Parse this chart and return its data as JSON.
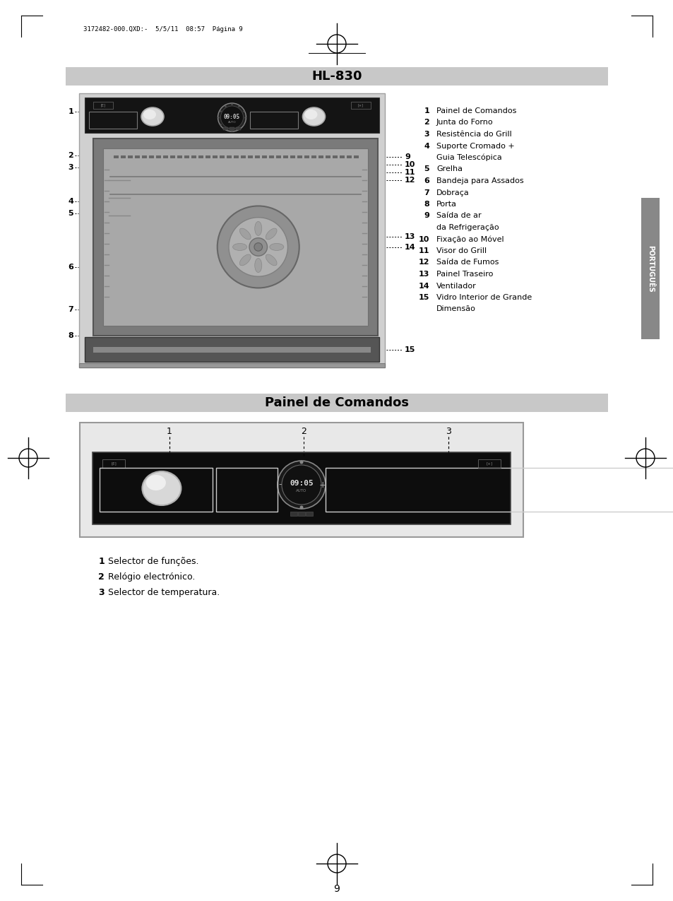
{
  "page_bg": "#ffffff",
  "header_text": "3172482-000.QXD:-  5/5/11  08:57  Página 9",
  "title1": "HL-830",
  "title2": "Painel de Comandos",
  "title_bg": "#c8c8c8",
  "left_labels": [
    "1",
    "2",
    "3",
    "4",
    "5",
    "6",
    "7",
    "8"
  ],
  "legend": [
    [
      "1",
      "Painel de Comandos"
    ],
    [
      "2",
      "Junta do Forno"
    ],
    [
      "3",
      "Resistência do Grill"
    ],
    [
      "4",
      "Suporte Cromado +"
    ],
    [
      "",
      "Guia Telescópica"
    ],
    [
      "5",
      "Grelha"
    ],
    [
      "6",
      "Bandeja para Assados"
    ],
    [
      "7",
      "Dobraça"
    ],
    [
      "8",
      "Porta"
    ],
    [
      "9",
      "Saída de ar"
    ],
    [
      "",
      "da Refrigeração"
    ],
    [
      "10",
      "Fixação ao Móvel"
    ],
    [
      "11",
      "Visor do Grill"
    ],
    [
      "12",
      "Saída de Fumos"
    ],
    [
      "13",
      "Painel Traseiro"
    ],
    [
      "14",
      "Ventilador"
    ],
    [
      "15",
      "Vidro Interior de Grande"
    ],
    [
      "",
      "Dimensão"
    ]
  ],
  "panel_labels": [
    [
      "1",
      "Selector de funções."
    ],
    [
      "2",
      "Relógio electrónico."
    ],
    [
      "3",
      "Selector de temperatura."
    ]
  ],
  "portugues_text": "PORTUGUÊS",
  "page_number": "9"
}
